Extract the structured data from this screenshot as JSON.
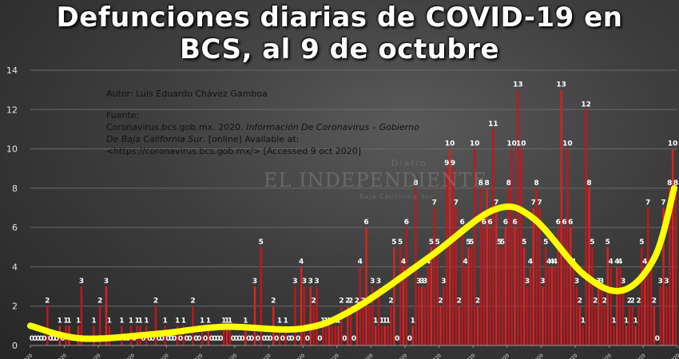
{
  "title": {
    "line1": "Defunciones diarias  de COVID-19 en",
    "line2": "BCS, al 9 de octubre"
  },
  "annotation": {
    "author": "Autor: Luis Eduardo Chávez Gamboa",
    "source_label": "Fuente:",
    "source_line1_plain": "Coronavirus.bcs.gob.mx. 2020. ",
    "source_line1_italic": "Información De Coronavirus – Gobierno",
    "source_line2_italic": "De Baja California Sur",
    "source_line2_plain": ". [online] Available at:",
    "source_line3": "<https://coronavirus.bcs.gob.mx/> [Accessed  9 oct 2020]"
  },
  "watermark": {
    "small": "Diario",
    "main": "EL INDEPENDIENTE",
    "sub": "Baja California Sur"
  },
  "colors": {
    "bar": "#c4161c",
    "bar_highlight": "#e02020",
    "trend": "#ffff00",
    "gridline": "#6a6a6a",
    "axis_text": "#e6e6e6",
    "label_text": "#ffffff"
  },
  "chart_data": {
    "type": "bar",
    "title": "Defunciones diarias  de COVID-19 en BCS, al 9 de octubre",
    "xlabel": "",
    "ylabel": "",
    "ylim": [
      0,
      14
    ],
    "yticks": [
      0,
      2,
      4,
      6,
      8,
      10,
      12,
      14
    ],
    "grid": true,
    "legend": "none",
    "x_tick_format": "dd/mm/2020 (rotated, partially cropped)",
    "x_tick_count": 20,
    "overlay": {
      "type": "polynomial trendline",
      "color": "#ffff00"
    },
    "series": [
      {
        "name": "Defunciones diarias",
        "values": [
          0,
          0,
          0,
          0,
          0,
          2,
          0,
          0,
          0,
          1,
          0,
          1,
          1,
          0,
          0,
          1,
          3,
          0,
          0,
          0,
          1,
          0,
          2,
          0,
          3,
          1,
          0,
          0,
          0,
          1,
          0,
          0,
          1,
          0,
          1,
          1,
          0,
          1,
          0,
          0,
          2,
          0,
          0,
          1,
          0,
          0,
          0,
          1,
          0,
          1,
          0,
          0,
          2,
          0,
          0,
          1,
          0,
          1,
          0,
          0,
          0,
          0,
          1,
          1,
          1,
          0,
          0,
          0,
          0,
          1,
          0,
          0,
          3,
          0,
          5,
          0,
          0,
          0,
          2,
          0,
          1,
          0,
          1,
          0,
          0,
          3,
          0,
          4,
          3,
          0,
          3,
          2,
          3,
          0,
          1,
          1,
          1,
          1,
          1,
          1,
          2,
          0,
          2,
          2,
          0,
          2,
          4,
          2,
          6,
          2,
          3,
          1,
          3,
          1,
          1,
          1,
          2,
          5,
          0,
          5,
          4,
          6,
          0,
          1,
          8,
          3,
          3,
          3,
          4,
          5,
          7,
          5,
          2,
          3,
          9,
          10,
          9,
          7,
          2,
          6,
          4,
          5,
          5,
          10,
          2,
          8,
          6,
          8,
          6,
          11,
          7,
          5,
          5,
          6,
          8,
          10,
          6,
          13,
          10,
          5,
          3,
          4,
          7,
          8,
          7,
          3,
          5,
          4,
          4,
          4,
          6,
          13,
          6,
          10,
          6,
          4,
          3,
          2,
          1,
          12,
          8,
          5,
          2,
          3,
          3,
          2,
          5,
          4,
          1,
          4,
          4,
          3,
          1,
          2,
          2,
          1,
          2,
          5,
          4,
          7,
          4,
          2,
          0,
          3,
          7,
          3,
          8,
          10,
          8
        ]
      }
    ],
    "trend_points_approx": [
      [
        0,
        1.0
      ],
      [
        0.08,
        0.35
      ],
      [
        0.2,
        0.6
      ],
      [
        0.3,
        0.95
      ],
      [
        0.42,
        0.85
      ],
      [
        0.5,
        1.8
      ],
      [
        0.62,
        4.5
      ],
      [
        0.72,
        6.9
      ],
      [
        0.78,
        6.5
      ],
      [
        0.86,
        3.6
      ],
      [
        0.92,
        2.8
      ],
      [
        0.97,
        4.5
      ],
      [
        1.0,
        8.0
      ]
    ]
  }
}
